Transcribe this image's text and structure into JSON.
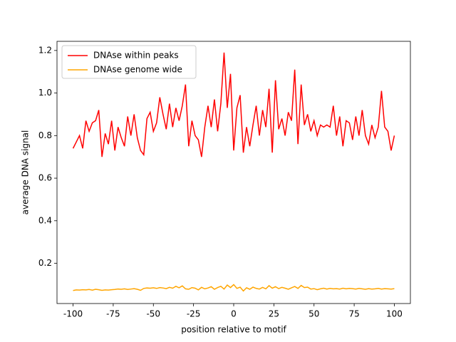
{
  "chart_data": {
    "type": "line",
    "xlabel": "position relative to motif",
    "ylabel": "average DNA signal",
    "x": [
      -100,
      -98,
      -96,
      -94,
      -92,
      -90,
      -88,
      -86,
      -84,
      -82,
      -80,
      -78,
      -76,
      -74,
      -72,
      -70,
      -68,
      -66,
      -64,
      -62,
      -60,
      -58,
      -56,
      -54,
      -52,
      -50,
      -48,
      -46,
      -44,
      -42,
      -40,
      -38,
      -36,
      -34,
      -32,
      -30,
      -28,
      -26,
      -24,
      -22,
      -20,
      -18,
      -16,
      -14,
      -12,
      -10,
      -8,
      -6,
      -4,
      -2,
      0,
      2,
      4,
      6,
      8,
      10,
      12,
      14,
      16,
      18,
      20,
      22,
      24,
      26,
      28,
      30,
      32,
      34,
      36,
      38,
      40,
      42,
      44,
      46,
      48,
      50,
      52,
      54,
      56,
      58,
      60,
      62,
      64,
      66,
      68,
      70,
      72,
      74,
      76,
      78,
      80,
      82,
      84,
      86,
      88,
      90,
      92,
      94,
      96,
      98,
      100
    ],
    "series": [
      {
        "name": "DNAse within peaks",
        "color": "#ff0000",
        "values": [
          0.74,
          0.77,
          0.8,
          0.74,
          0.87,
          0.82,
          0.86,
          0.87,
          0.92,
          0.7,
          0.81,
          0.76,
          0.87,
          0.73,
          0.84,
          0.79,
          0.75,
          0.89,
          0.8,
          0.9,
          0.79,
          0.73,
          0.71,
          0.88,
          0.91,
          0.82,
          0.86,
          0.98,
          0.9,
          0.83,
          0.95,
          0.84,
          0.93,
          0.87,
          0.94,
          1.04,
          0.75,
          0.87,
          0.8,
          0.78,
          0.7,
          0.84,
          0.94,
          0.84,
          0.97,
          0.82,
          0.95,
          1.19,
          0.93,
          1.09,
          0.73,
          0.93,
          0.99,
          0.72,
          0.84,
          0.75,
          0.85,
          0.94,
          0.8,
          0.92,
          0.84,
          1.02,
          0.72,
          1.06,
          0.83,
          0.88,
          0.8,
          0.91,
          0.87,
          1.11,
          0.76,
          1.04,
          0.85,
          0.9,
          0.82,
          0.87,
          0.8,
          0.85,
          0.84,
          0.85,
          0.84,
          0.94,
          0.8,
          0.89,
          0.75,
          0.87,
          0.86,
          0.78,
          0.89,
          0.8,
          0.92,
          0.8,
          0.76,
          0.85,
          0.79,
          0.84,
          1.01,
          0.84,
          0.82,
          0.73,
          0.8
        ]
      },
      {
        "name": "DNAse genome wide",
        "color": "#ffa500",
        "values": [
          0.072,
          0.075,
          0.074,
          0.076,
          0.075,
          0.077,
          0.074,
          0.078,
          0.076,
          0.073,
          0.075,
          0.074,
          0.076,
          0.077,
          0.079,
          0.078,
          0.08,
          0.077,
          0.079,
          0.081,
          0.078,
          0.073,
          0.082,
          0.084,
          0.083,
          0.085,
          0.082,
          0.086,
          0.084,
          0.081,
          0.087,
          0.083,
          0.092,
          0.085,
          0.094,
          0.08,
          0.078,
          0.086,
          0.083,
          0.075,
          0.087,
          0.08,
          0.084,
          0.09,
          0.078,
          0.086,
          0.092,
          0.079,
          0.098,
          0.086,
          0.1,
          0.082,
          0.088,
          0.07,
          0.085,
          0.078,
          0.088,
          0.082,
          0.079,
          0.087,
          0.08,
          0.095,
          0.083,
          0.09,
          0.081,
          0.087,
          0.083,
          0.078,
          0.085,
          0.091,
          0.082,
          0.096,
          0.086,
          0.088,
          0.079,
          0.081,
          0.076,
          0.08,
          0.083,
          0.079,
          0.082,
          0.08,
          0.081,
          0.079,
          0.083,
          0.08,
          0.082,
          0.081,
          0.079,
          0.082,
          0.08,
          0.078,
          0.081,
          0.079,
          0.08,
          0.082,
          0.079,
          0.081,
          0.08,
          0.079,
          0.081
        ]
      }
    ],
    "xlim": [
      -110,
      110
    ],
    "xticks": [
      -100,
      -75,
      -50,
      -25,
      0,
      25,
      50,
      75,
      100
    ],
    "ylim": [
      0.011,
      1.243
    ],
    "yticks": [
      0.2,
      0.4,
      0.6,
      0.8,
      1.0,
      1.2
    ],
    "legend": "upper left"
  }
}
